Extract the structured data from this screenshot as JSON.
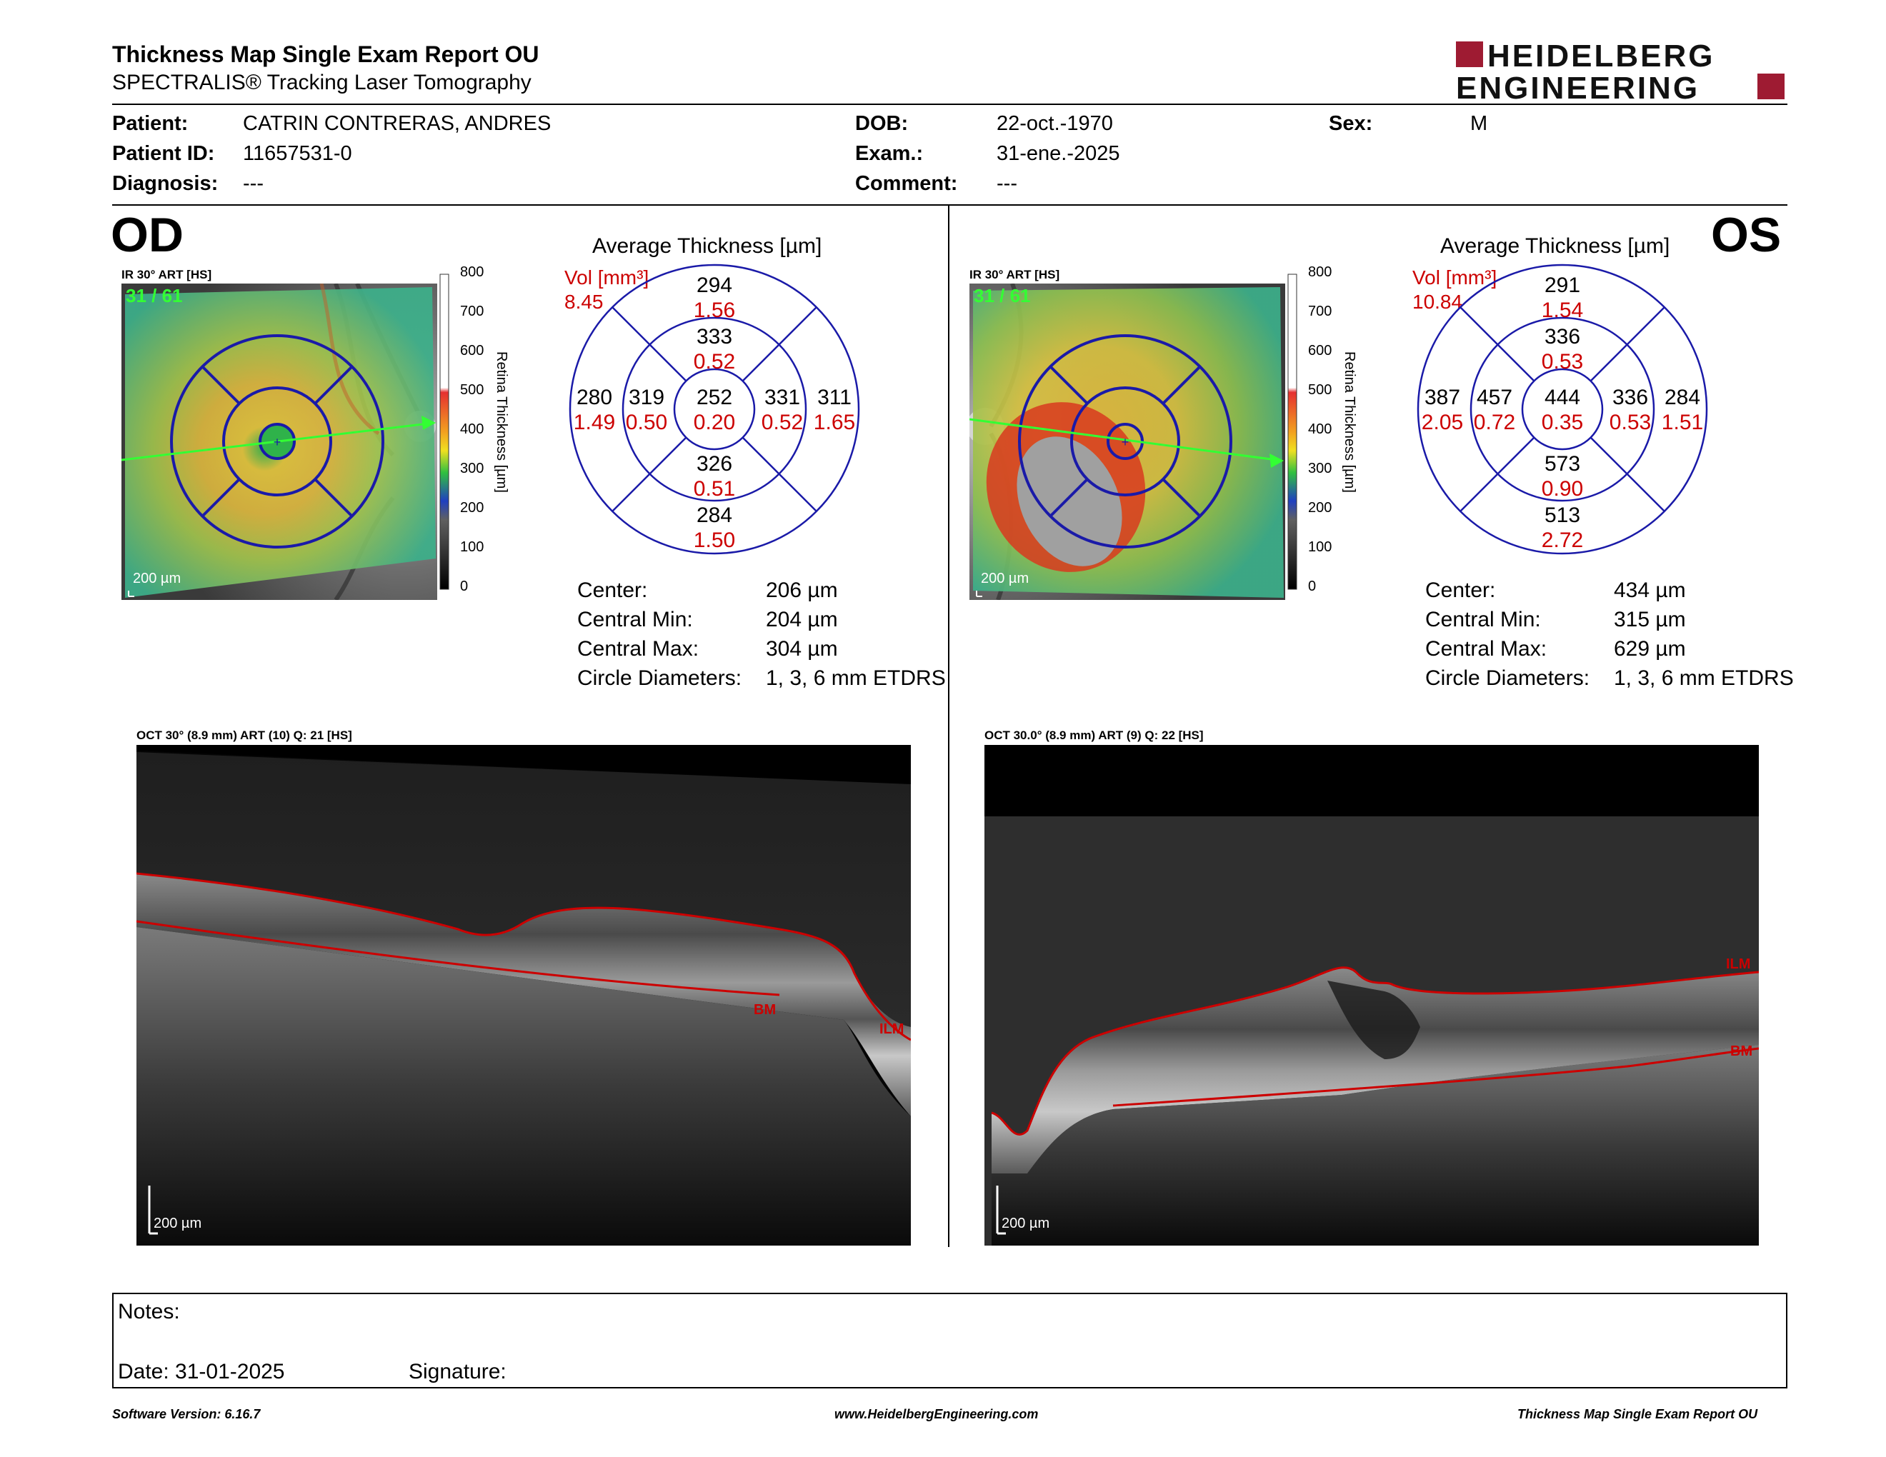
{
  "header": {
    "title": "Thickness Map Single Exam Report OU",
    "subtitle": "SPECTRALIS® Tracking Laser Tomography",
    "logo": {
      "line1": "HEIDELBERG",
      "line2": "ENGINEERING",
      "accent": "#9e1b32"
    }
  },
  "patient": {
    "patient_label": "Patient:",
    "patient_value": "CATRIN CONTRERAS, ANDRES",
    "id_label": "Patient ID:",
    "id_value": "11657531-0",
    "diagnosis_label": "Diagnosis:",
    "diagnosis_value": "---",
    "dob_label": "DOB:",
    "dob_value": "22-oct.-1970",
    "exam_label": "Exam.:",
    "exam_value": "31-ene.-2025",
    "comment_label": "Comment:",
    "comment_value": "---",
    "sex_label": "Sex:",
    "sex_value": "M"
  },
  "od": {
    "eye": "OD",
    "ir_caption": "IR 30° ART [HS]",
    "frame_label": "31 / 61",
    "scale_label": "200 µm",
    "colorbar": {
      "ticks": [
        "800",
        "700",
        "600",
        "500",
        "400",
        "300",
        "200",
        "100",
        "0"
      ],
      "title": "Retina Thickness [µm]"
    },
    "avg_title": "Average Thickness [µm]",
    "vol_label": "Vol [mm³]",
    "vol_total": "8.45",
    "sectors": {
      "center": {
        "t": "252",
        "v": "0.20"
      },
      "inner_sup": {
        "t": "333",
        "v": "0.52"
      },
      "inner_inf": {
        "t": "326",
        "v": "0.51"
      },
      "inner_left": {
        "t": "319",
        "v": "0.50"
      },
      "inner_right": {
        "t": "331",
        "v": "0.52"
      },
      "outer_sup": {
        "t": "294",
        "v": "1.56"
      },
      "outer_inf": {
        "t": "284",
        "v": "1.50"
      },
      "outer_left": {
        "t": "280",
        "v": "1.49"
      },
      "outer_right": {
        "t": "311",
        "v": "1.65"
      }
    },
    "stats": [
      {
        "label": "Center:",
        "value": "206 µm"
      },
      {
        "label": "Central Min:",
        "value": "204 µm"
      },
      {
        "label": "Central Max:",
        "value": "304 µm"
      },
      {
        "label": "Circle Diameters:",
        "value": "1, 3, 6 mm ETDRS"
      }
    ],
    "oct_caption": "OCT 30° (8.9 mm) ART (10) Q: 21 [HS]",
    "oct_labels": {
      "bm": "BM",
      "ilm": "ILM"
    },
    "oct_scale": "200 µm"
  },
  "os": {
    "eye": "OS",
    "ir_caption": "IR 30° ART [HS]",
    "frame_label": "31 / 61",
    "scale_label": "200 µm",
    "colorbar": {
      "ticks": [
        "800",
        "700",
        "600",
        "500",
        "400",
        "300",
        "200",
        "100",
        "0"
      ],
      "title": "Retina Thickness [µm]"
    },
    "avg_title": "Average Thickness [µm]",
    "vol_label": "Vol [mm³]",
    "vol_total": "10.84",
    "sectors": {
      "center": {
        "t": "444",
        "v": "0.35"
      },
      "inner_sup": {
        "t": "336",
        "v": "0.53"
      },
      "inner_inf": {
        "t": "573",
        "v": "0.90"
      },
      "inner_left": {
        "t": "457",
        "v": "0.72"
      },
      "inner_right": {
        "t": "336",
        "v": "0.53"
      },
      "outer_sup": {
        "t": "291",
        "v": "1.54"
      },
      "outer_inf": {
        "t": "513",
        "v": "2.72"
      },
      "outer_left": {
        "t": "387",
        "v": "2.05"
      },
      "outer_right": {
        "t": "284",
        "v": "1.51"
      }
    },
    "stats": [
      {
        "label": "Center:",
        "value": "434 µm"
      },
      {
        "label": "Central Min:",
        "value": "315 µm"
      },
      {
        "label": "Central Max:",
        "value": "629 µm"
      },
      {
        "label": "Circle Diameters:",
        "value": "1, 3, 6 mm ETDRS"
      }
    ],
    "oct_caption": "OCT 30.0° (8.9 mm) ART (9) Q: 22 [HS]",
    "oct_labels": {
      "bm": "BM",
      "ilm": "ILM"
    },
    "oct_scale": "200 µm"
  },
  "notes": {
    "notes_label": "Notes:",
    "date_label": "Date: 31-01-2025",
    "signature_label": "Signature:"
  },
  "footer": {
    "software": "Software Version: 6.16.7",
    "website": "www.HeidelbergEngineering.com",
    "report": "Thickness Map Single Exam Report OU"
  },
  "colors": {
    "segment_red": "#cc0000",
    "grid_blue": "#1a1aa8",
    "scan_green": "#33ff33"
  }
}
